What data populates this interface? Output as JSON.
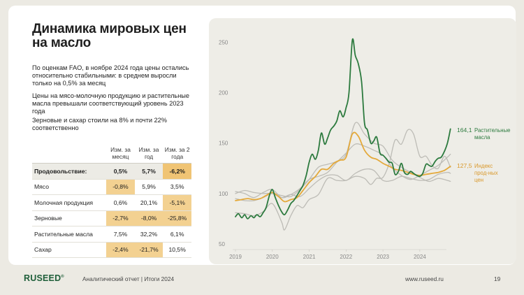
{
  "title": "Динамика мировых цен на масло",
  "paragraphs": [
    "По оценкам FAO, в ноябре 2024 года цены остались относительно стабильными: в среднем выросли только на 0,5% за месяц",
    "Цены на мясо-молочную продукцию и растительные масла превышали соответствующий уровень 2023 года",
    "Зерновые и сахар стоили на 8% и почти 22% соответственно"
  ],
  "table": {
    "headers": [
      "",
      "Изм. за месяц",
      "Изм. за год",
      "Изм. за 2 года"
    ],
    "rows": [
      {
        "label": "Продовольствие:",
        "values": [
          "0,5%",
          "5,7%",
          "-6,2%"
        ],
        "bold": true,
        "highlight": [
          false,
          false,
          true
        ]
      },
      {
        "label": "Мясо",
        "values": [
          "-0,8%",
          "5,9%",
          "3,5%"
        ],
        "bold": false,
        "highlight": [
          true,
          false,
          false
        ]
      },
      {
        "label": "Молочная продукция",
        "values": [
          "0,6%",
          "20,1%",
          "-5,1%"
        ],
        "bold": false,
        "highlight": [
          false,
          false,
          true
        ]
      },
      {
        "label": "Зерновые",
        "values": [
          "-2,7%",
          "-8,0%",
          "-25,8%"
        ],
        "bold": false,
        "highlight": [
          true,
          true,
          true
        ]
      },
      {
        "label": "Растительные масла",
        "values": [
          "7,5%",
          "32,2%",
          "6,1%"
        ],
        "bold": false,
        "highlight": [
          false,
          false,
          false
        ]
      },
      {
        "label": "Сахар",
        "values": [
          "-2,4%",
          "-21,7%",
          "10,5%"
        ],
        "bold": false,
        "highlight": [
          true,
          true,
          false
        ]
      }
    ]
  },
  "chart_data": {
    "type": "line",
    "ylim": [
      50,
      260
    ],
    "yticks": [
      50,
      100,
      150,
      200,
      250
    ],
    "xlim": [
      2019,
      2024.95
    ],
    "xticks": [
      2019,
      2020,
      2021,
      2022,
      2023,
      2024
    ],
    "colors": {
      "veg": "#2c7a3e",
      "food": "#e4a93a",
      "gray": "#bdbcb6"
    },
    "series": [
      {
        "name": "Растительные масла",
        "end_label_value": "164,1",
        "color": "#2c7a3e",
        "emphasis": true,
        "points": [
          [
            2019.0,
            77
          ],
          [
            2019.08,
            80
          ],
          [
            2019.17,
            76
          ],
          [
            2019.25,
            79
          ],
          [
            2019.33,
            75
          ],
          [
            2019.42,
            78
          ],
          [
            2019.5,
            76
          ],
          [
            2019.58,
            79
          ],
          [
            2019.67,
            77
          ],
          [
            2019.75,
            81
          ],
          [
            2019.83,
            86
          ],
          [
            2019.92,
            98
          ],
          [
            2020.0,
            104
          ],
          [
            2020.08,
            96
          ],
          [
            2020.17,
            88
          ],
          [
            2020.25,
            82
          ],
          [
            2020.33,
            79
          ],
          [
            2020.42,
            84
          ],
          [
            2020.5,
            90
          ],
          [
            2020.58,
            93
          ],
          [
            2020.67,
            98
          ],
          [
            2020.75,
            103
          ],
          [
            2020.83,
            108
          ],
          [
            2020.92,
            118
          ],
          [
            2021.0,
            131
          ],
          [
            2021.08,
            139
          ],
          [
            2021.17,
            134
          ],
          [
            2021.25,
            143
          ],
          [
            2021.33,
            160
          ],
          [
            2021.42,
            149
          ],
          [
            2021.5,
            155
          ],
          [
            2021.58,
            163
          ],
          [
            2021.67,
            167
          ],
          [
            2021.75,
            172
          ],
          [
            2021.83,
            182
          ],
          [
            2021.92,
            176
          ],
          [
            2022.0,
            185
          ],
          [
            2022.08,
            200
          ],
          [
            2022.17,
            252
          ],
          [
            2022.25,
            237
          ],
          [
            2022.33,
            229
          ],
          [
            2022.42,
            211
          ],
          [
            2022.5,
            170
          ],
          [
            2022.58,
            163
          ],
          [
            2022.67,
            150
          ],
          [
            2022.75,
            152
          ],
          [
            2022.83,
            156
          ],
          [
            2022.92,
            140
          ],
          [
            2023.0,
            138
          ],
          [
            2023.08,
            135
          ],
          [
            2023.17,
            131
          ],
          [
            2023.25,
            130
          ],
          [
            2023.33,
            119
          ],
          [
            2023.42,
            122
          ],
          [
            2023.5,
            130
          ],
          [
            2023.58,
            121
          ],
          [
            2023.67,
            119
          ],
          [
            2023.75,
            122
          ],
          [
            2023.83,
            120
          ],
          [
            2023.92,
            118
          ],
          [
            2024.0,
            117
          ],
          [
            2024.08,
            120
          ],
          [
            2024.17,
            129
          ],
          [
            2024.25,
            128
          ],
          [
            2024.33,
            127
          ],
          [
            2024.42,
            132
          ],
          [
            2024.5,
            135
          ],
          [
            2024.58,
            136
          ],
          [
            2024.67,
            142
          ],
          [
            2024.75,
            150
          ],
          [
            2024.83,
            164
          ]
        ]
      },
      {
        "name": "Индекс прод-ных цен",
        "end_label_value": "127,5",
        "color": "#e4a93a",
        "emphasis": true,
        "points": [
          [
            2019.0,
            93
          ],
          [
            2019.17,
            94
          ],
          [
            2019.33,
            95
          ],
          [
            2019.5,
            94
          ],
          [
            2019.67,
            95
          ],
          [
            2019.83,
            98
          ],
          [
            2020.0,
            101
          ],
          [
            2020.17,
            97
          ],
          [
            2020.33,
            92
          ],
          [
            2020.5,
            94
          ],
          [
            2020.67,
            96
          ],
          [
            2020.83,
            103
          ],
          [
            2021.0,
            111
          ],
          [
            2021.17,
            117
          ],
          [
            2021.33,
            124
          ],
          [
            2021.5,
            124
          ],
          [
            2021.67,
            130
          ],
          [
            2021.83,
            133
          ],
          [
            2022.0,
            136
          ],
          [
            2022.17,
            159
          ],
          [
            2022.33,
            157
          ],
          [
            2022.5,
            143
          ],
          [
            2022.67,
            136
          ],
          [
            2022.83,
            134
          ],
          [
            2023.0,
            130
          ],
          [
            2023.17,
            127
          ],
          [
            2023.33,
            124
          ],
          [
            2023.5,
            123
          ],
          [
            2023.67,
            121
          ],
          [
            2023.83,
            119
          ],
          [
            2024.0,
            118
          ],
          [
            2024.17,
            119
          ],
          [
            2024.33,
            120
          ],
          [
            2024.5,
            121
          ],
          [
            2024.67,
            123
          ],
          [
            2024.83,
            127
          ]
        ]
      },
      {
        "color": "#bdbcb6",
        "emphasis": false,
        "points": [
          [
            2019.0,
            100
          ],
          [
            2019.25,
            103
          ],
          [
            2019.5,
            101
          ],
          [
            2019.75,
            100
          ],
          [
            2020.0,
            100
          ],
          [
            2020.25,
            96
          ],
          [
            2020.5,
            99
          ],
          [
            2020.75,
            97
          ],
          [
            2021.0,
            105
          ],
          [
            2021.25,
            113
          ],
          [
            2021.5,
            118
          ],
          [
            2021.75,
            118
          ],
          [
            2022.0,
            113
          ],
          [
            2022.25,
            120
          ],
          [
            2022.5,
            124
          ],
          [
            2022.75,
            123
          ],
          [
            2023.0,
            113
          ],
          [
            2023.25,
            113
          ],
          [
            2023.5,
            117
          ],
          [
            2023.75,
            115
          ],
          [
            2024.0,
            113
          ],
          [
            2024.25,
            114
          ],
          [
            2024.5,
            119
          ],
          [
            2024.75,
            121
          ],
          [
            2024.83,
            120
          ]
        ]
      },
      {
        "color": "#bdbcb6",
        "emphasis": false,
        "points": [
          [
            2019.0,
            102
          ],
          [
            2019.25,
            100
          ],
          [
            2019.5,
            96
          ],
          [
            2019.75,
            101
          ],
          [
            2020.0,
            104
          ],
          [
            2020.25,
            96
          ],
          [
            2020.5,
            99
          ],
          [
            2020.75,
            105
          ],
          [
            2021.0,
            114
          ],
          [
            2021.25,
            117
          ],
          [
            2021.5,
            121
          ],
          [
            2021.75,
            131
          ],
          [
            2022.0,
            140
          ],
          [
            2022.25,
            149
          ],
          [
            2022.5,
            147
          ],
          [
            2022.75,
            143
          ],
          [
            2023.0,
            138
          ],
          [
            2023.25,
            126
          ],
          [
            2023.5,
            118
          ],
          [
            2023.75,
            114
          ],
          [
            2024.0,
            118
          ],
          [
            2024.25,
            123
          ],
          [
            2024.5,
            128
          ],
          [
            2024.75,
            136
          ],
          [
            2024.83,
            139
          ]
        ]
      },
      {
        "color": "#bdbcb6",
        "emphasis": false,
        "points": [
          [
            2019.0,
            95
          ],
          [
            2019.25,
            93
          ],
          [
            2019.5,
            93
          ],
          [
            2019.75,
            96
          ],
          [
            2020.0,
            100
          ],
          [
            2020.25,
            98
          ],
          [
            2020.5,
            97
          ],
          [
            2020.75,
            104
          ],
          [
            2021.0,
            114
          ],
          [
            2021.25,
            126
          ],
          [
            2021.5,
            129
          ],
          [
            2021.75,
            132
          ],
          [
            2022.0,
            139
          ],
          [
            2022.25,
            170
          ],
          [
            2022.5,
            159
          ],
          [
            2022.75,
            150
          ],
          [
            2023.0,
            147
          ],
          [
            2023.25,
            133
          ],
          [
            2023.5,
            126
          ],
          [
            2023.75,
            121
          ],
          [
            2024.0,
            116
          ],
          [
            2024.25,
            112
          ],
          [
            2024.5,
            115
          ],
          [
            2024.75,
            113
          ],
          [
            2024.83,
            112
          ]
        ]
      },
      {
        "color": "#bdbcb6",
        "emphasis": false,
        "points": [
          [
            2019.0,
            81
          ],
          [
            2019.25,
            80
          ],
          [
            2019.5,
            78
          ],
          [
            2019.75,
            82
          ],
          [
            2020.0,
            90
          ],
          [
            2020.25,
            72
          ],
          [
            2020.33,
            64
          ],
          [
            2020.5,
            78
          ],
          [
            2020.67,
            88
          ],
          [
            2020.83,
            86
          ],
          [
            2021.0,
            94
          ],
          [
            2021.25,
            99
          ],
          [
            2021.5,
            115
          ],
          [
            2021.75,
            113
          ],
          [
            2022.0,
            113
          ],
          [
            2022.25,
            117
          ],
          [
            2022.5,
            115
          ],
          [
            2022.67,
            109
          ],
          [
            2022.83,
            115
          ],
          [
            2023.0,
            116
          ],
          [
            2023.17,
            130
          ],
          [
            2023.33,
            153
          ],
          [
            2023.5,
            149
          ],
          [
            2023.67,
            163
          ],
          [
            2023.83,
            159
          ],
          [
            2024.0,
            137
          ],
          [
            2024.17,
            137
          ],
          [
            2024.33,
            128
          ],
          [
            2024.5,
            125
          ],
          [
            2024.67,
            137
          ],
          [
            2024.83,
            126
          ]
        ]
      }
    ]
  },
  "chart_labels": {
    "veg_value": "164,1",
    "veg_name": [
      "Растительные",
      "масла"
    ],
    "food_value": "127,5",
    "food_name": [
      "Индекс",
      "прод-ных",
      "цен"
    ]
  },
  "footer": {
    "logo": "RUSEED",
    "logo_mark": "®",
    "text": "Аналитический отчет  |  Итоги 2024",
    "url": "www.ruseed.ru",
    "page": "19"
  }
}
